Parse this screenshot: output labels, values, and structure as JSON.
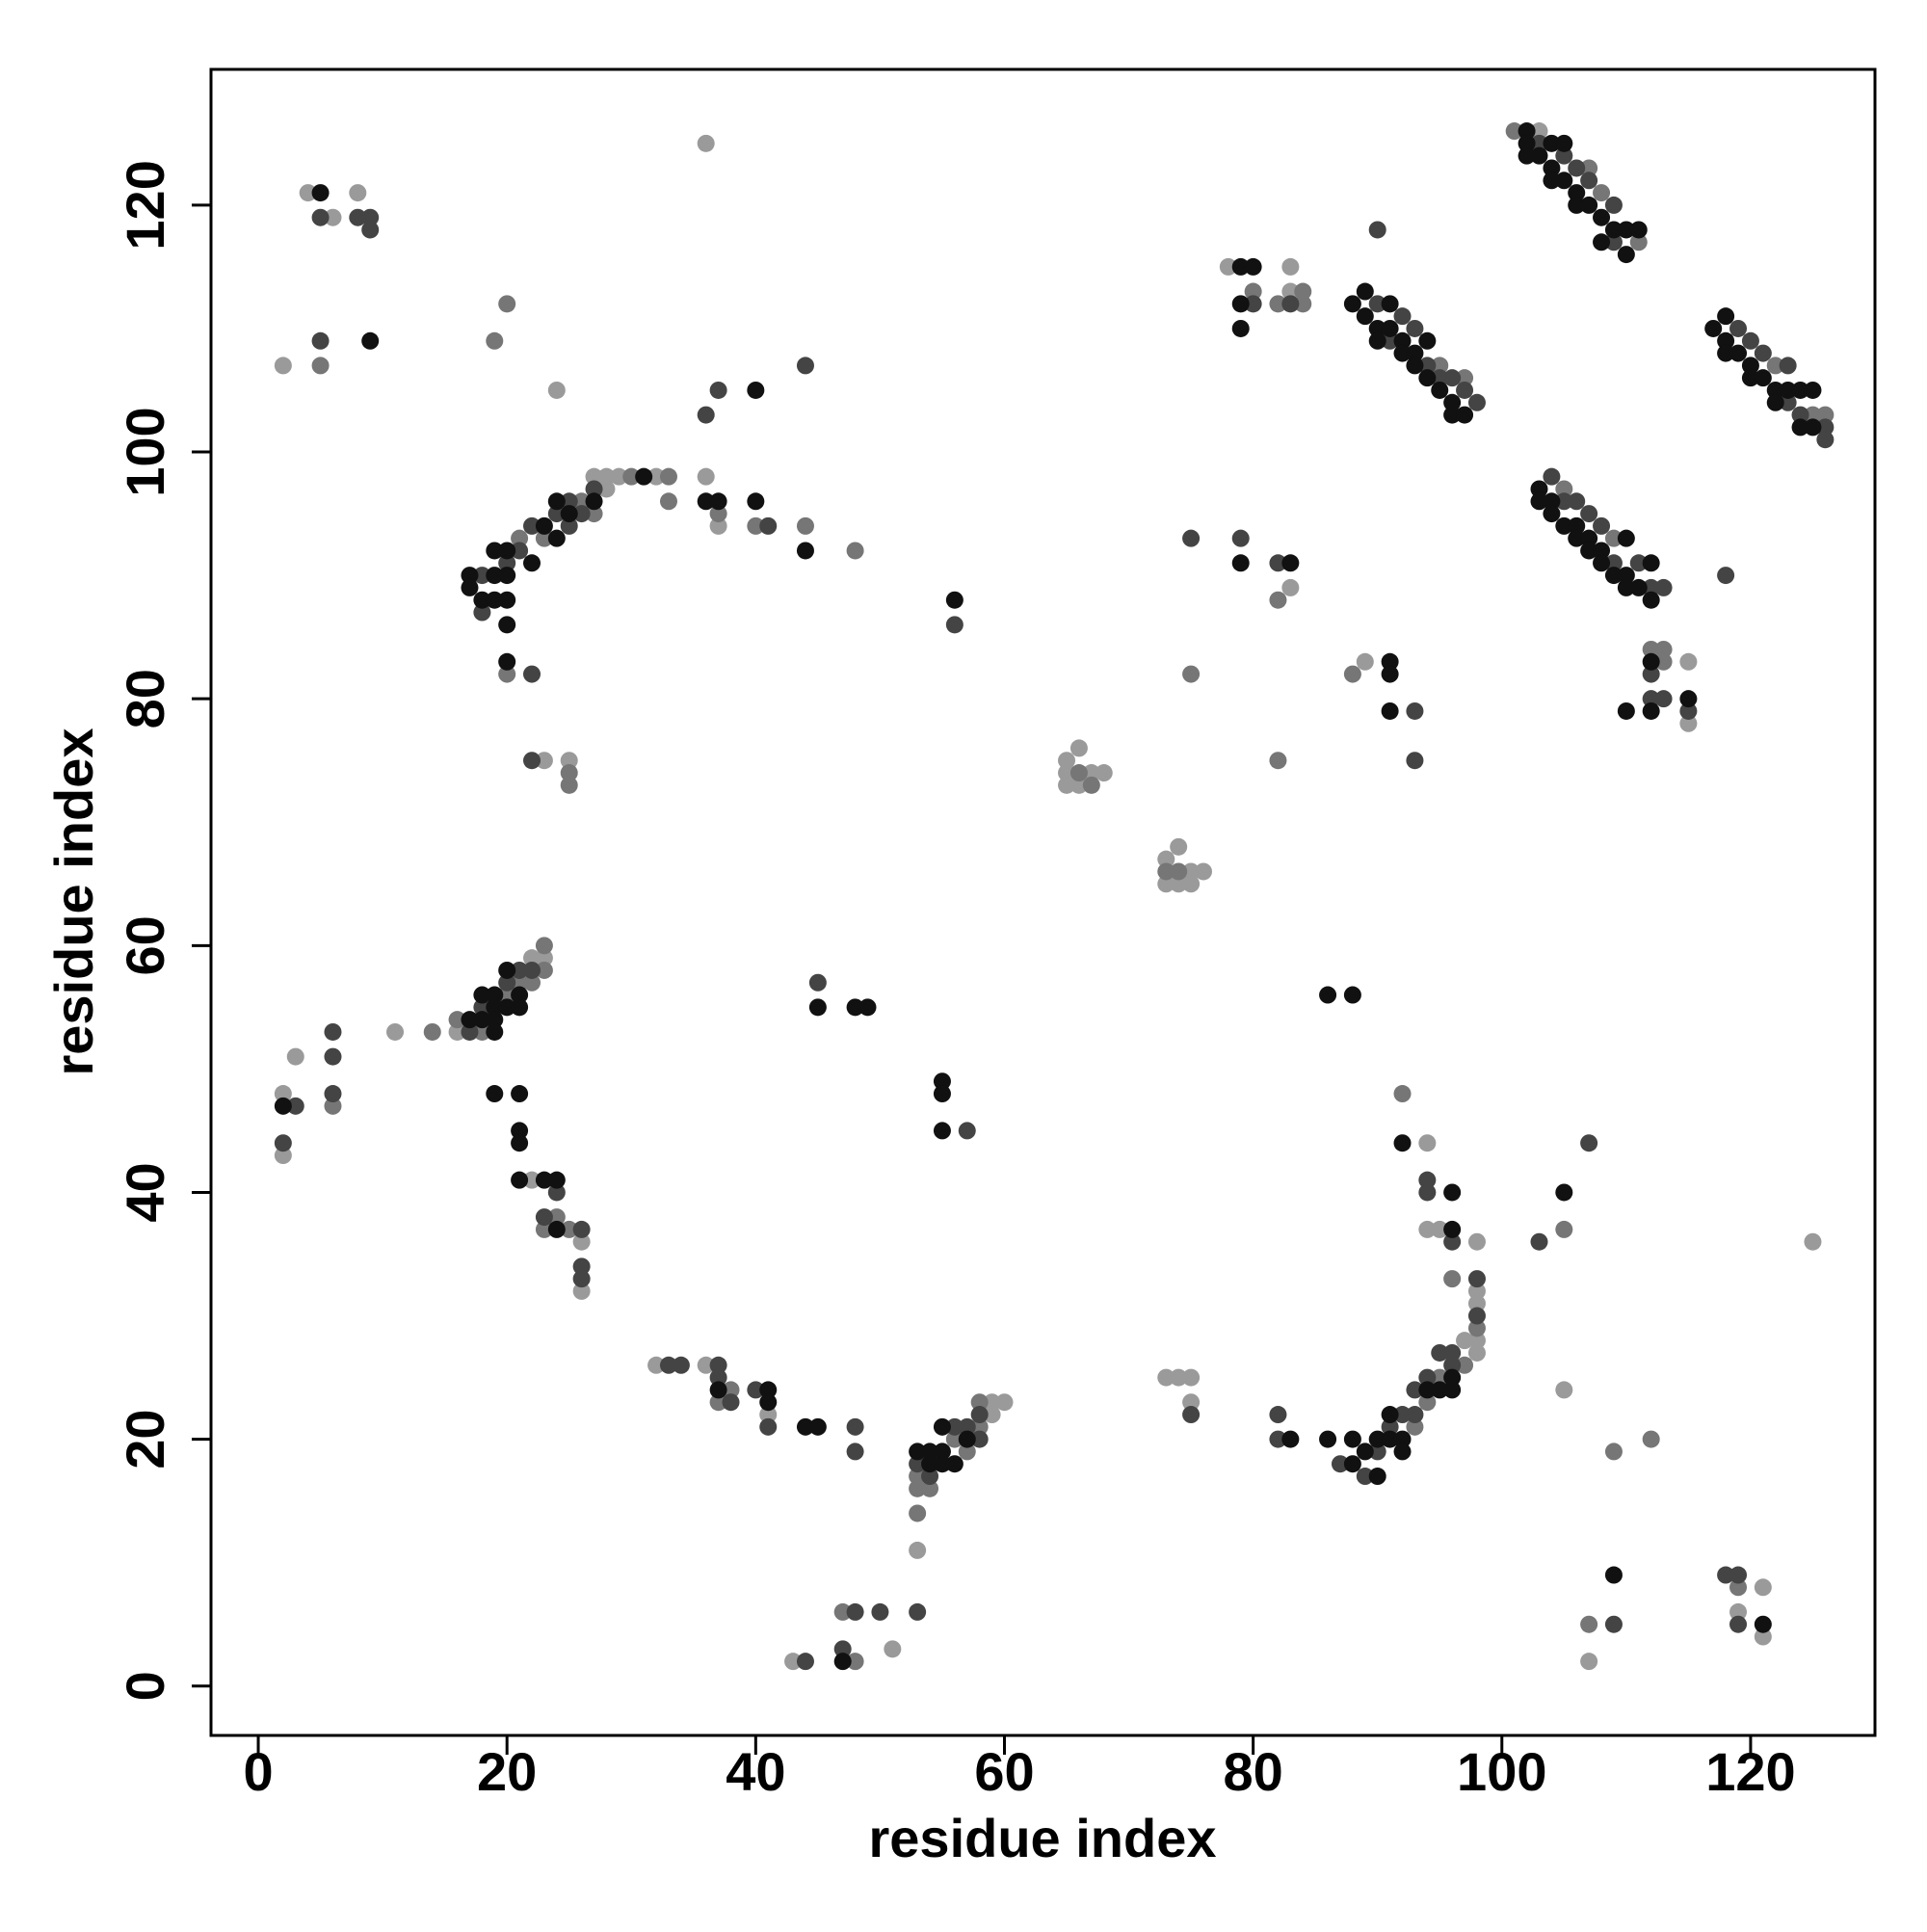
{
  "chart_data": {
    "type": "scatter",
    "xlabel": "residue index",
    "ylabel": "residue index",
    "xlim": [
      -3.8,
      130
    ],
    "ylim": [
      -4,
      131
    ],
    "xticks": [
      0,
      20,
      40,
      60,
      80,
      100,
      120
    ],
    "yticks": [
      0,
      20,
      40,
      60,
      80,
      100,
      120
    ],
    "grid": false,
    "series": [
      {
        "color": "#9a9a9a",
        "x": [
          4,
          6,
          8,
          2,
          24,
          36,
          27,
          28,
          28,
          29,
          32,
          36,
          37,
          23,
          25,
          65,
          65,
          65,
          66,
          66,
          67,
          68,
          73,
          73,
          74,
          74,
          75,
          75,
          76,
          78,
          83,
          83,
          83,
          103,
          115,
          115,
          89,
          2,
          2,
          3,
          11,
          16,
          22,
          23,
          22,
          26,
          26,
          32,
          36,
          41,
          53,
          59,
          59,
          60,
          43,
          51,
          73,
          74,
          75,
          75,
          97,
          98,
          98,
          98,
          98,
          98,
          94,
          94,
          95,
          105,
          125,
          107,
          119,
          121,
          121
        ],
        "values": [
          121,
          119,
          121,
          107,
          105,
          125,
          98,
          98,
          97,
          98,
          98,
          98,
          94,
          75,
          75,
          75,
          74,
          73,
          76,
          73,
          74,
          74,
          67,
          65,
          68,
          65,
          66,
          65,
          66,
          115,
          115,
          113,
          89,
          126,
          83,
          78,
          83,
          48,
          43,
          51,
          53,
          53,
          59,
          59,
          41,
          36,
          32,
          26,
          26,
          22,
          11,
          23,
          22,
          23,
          2,
          3,
          25,
          25,
          25,
          23,
          28,
          32,
          31,
          28,
          27,
          36,
          44,
          37,
          37,
          24,
          36,
          2,
          6,
          8,
          4
        ]
      },
      {
        "color": "#767676",
        "x": [
          5,
          19,
          20,
          21,
          23,
          26,
          27,
          30,
          33,
          33,
          37,
          40,
          44,
          48,
          20,
          25,
          25,
          66,
          67,
          73,
          74,
          75,
          80,
          82,
          84,
          84,
          82,
          82,
          95,
          97,
          101,
          107,
          108,
          111,
          105,
          109,
          122,
          125,
          126,
          112,
          113,
          113,
          88,
          6,
          14,
          16,
          18,
          20,
          21,
          22,
          23,
          23,
          24,
          23,
          25,
          37,
          38,
          53,
          53,
          53,
          54,
          56,
          57,
          58,
          58,
          47,
          48,
          93,
          94,
          95,
          97,
          98,
          92,
          96,
          105,
          109,
          112,
          107,
          119
        ],
        "values": [
          107,
          109,
          112,
          93,
          93,
          96,
          95,
          98,
          98,
          96,
          95,
          94,
          94,
          92,
          82,
          74,
          73,
          74,
          73,
          66,
          66,
          82,
          113,
          112,
          113,
          112,
          88,
          75,
          107,
          106,
          126,
          123,
          121,
          117,
          97,
          93,
          107,
          103,
          103,
          84,
          84,
          83,
          82,
          47,
          53,
          54,
          53,
          56,
          57,
          57,
          60,
          58,
          38,
          37,
          37,
          23,
          24,
          17,
          16,
          14,
          16,
          20,
          19,
          21,
          23,
          6,
          2,
          21,
          23,
          25,
          26,
          29,
          48,
          33,
          37,
          19,
          20,
          5,
          8
        ]
      },
      {
        "color": "#444444",
        "x": [
          5,
          8,
          9,
          9,
          5,
          18,
          18,
          20,
          21,
          22,
          24,
          25,
          25,
          26,
          27,
          41,
          22,
          22,
          36,
          37,
          44,
          56,
          75,
          80,
          83,
          79,
          82,
          90,
          90,
          91,
          92,
          93,
          94,
          95,
          96,
          97,
          98,
          103,
          105,
          106,
          107,
          109,
          109,
          104,
          105,
          106,
          107,
          108,
          109,
          111,
          112,
          113,
          118,
          119,
          120,
          121,
          123,
          123,
          124,
          126,
          126,
          112,
          112,
          113,
          115,
          93,
          93,
          2,
          3,
          6,
          6,
          6,
          17,
          18,
          20,
          21,
          22,
          23,
          24,
          26,
          26,
          26,
          45,
          57,
          33,
          34,
          37,
          37,
          38,
          40,
          41,
          48,
          48,
          53,
          54,
          56,
          57,
          58,
          58,
          44,
          48,
          47,
          50,
          53,
          75,
          82,
          82,
          87,
          89,
          90,
          91,
          92,
          93,
          93,
          94,
          95,
          96,
          96,
          98,
          98,
          94,
          94,
          96,
          103,
          107,
          109,
          118,
          119,
          119
        ],
        "values": [
          119,
          119,
          119,
          118,
          109,
          90,
          87,
          91,
          92,
          94,
          95,
          96,
          94,
          95,
          97,
          94,
          82,
          75,
          103,
          105,
          107,
          86,
          93,
          112,
          112,
          93,
          91,
          118,
          112,
          109,
          111,
          110,
          107,
          106,
          106,
          105,
          104,
          125,
          124,
          123,
          122,
          120,
          117,
          98,
          96,
          96,
          95,
          94,
          91,
          91,
          89,
          89,
          90,
          110,
          109,
          108,
          107,
          104,
          103,
          102,
          101,
          82,
          80,
          80,
          79,
          79,
          75,
          44,
          47,
          53,
          51,
          48,
          53,
          55,
          57,
          58,
          58,
          38,
          40,
          37,
          34,
          33,
          57,
          45,
          26,
          26,
          26,
          25,
          23,
          24,
          21,
          21,
          19,
          18,
          17,
          21,
          21,
          22,
          20,
          2,
          6,
          3,
          6,
          6,
          22,
          22,
          20,
          18,
          17,
          19,
          21,
          22,
          24,
          22,
          25,
          27,
          27,
          26,
          33,
          30,
          41,
          40,
          36,
          36,
          44,
          5,
          9,
          9,
          5
        ]
      },
      {
        "color": "#111111",
        "x": [
          5,
          9,
          17,
          17,
          18,
          19,
          19,
          19,
          20,
          20,
          20,
          20,
          22,
          23,
          24,
          24,
          25,
          27,
          31,
          36,
          37,
          40,
          44,
          20,
          40,
          56,
          79,
          80,
          79,
          79,
          79,
          83,
          88,
          89,
          89,
          90,
          90,
          91,
          91,
          92,
          92,
          93,
          93,
          94,
          94,
          95,
          96,
          96,
          97,
          102,
          102,
          102,
          103,
          104,
          104,
          104,
          105,
          105,
          106,
          106,
          107,
          108,
          108,
          109,
          110,
          110,
          111,
          103,
          103,
          104,
          104,
          105,
          106,
          106,
          107,
          107,
          108,
          108,
          109,
          110,
          110,
          110,
          111,
          112,
          112,
          117,
          118,
          118,
          118,
          119,
          120,
          120,
          121,
          122,
          122,
          123,
          124,
          124,
          125,
          125,
          112,
          112,
          110,
          115,
          91,
          91,
          91,
          2,
          17,
          18,
          18,
          19,
          19,
          19,
          19,
          20,
          20,
          21,
          21,
          19,
          21,
          21,
          21,
          21,
          23,
          24,
          24,
          45,
          48,
          49,
          55,
          55,
          55,
          86,
          88,
          37,
          41,
          41,
          44,
          45,
          53,
          54,
          54,
          55,
          55,
          55,
          56,
          57,
          47,
          83,
          86,
          88,
          88,
          89,
          90,
          90,
          91,
          91,
          92,
          92,
          94,
          95,
          96,
          96,
          92,
          96,
          96,
          105,
          109,
          121
        ],
        "values": [
          121,
          109,
          90,
          89,
          88,
          92,
          90,
          88,
          92,
          90,
          88,
          86,
          91,
          94,
          96,
          93,
          95,
          96,
          98,
          96,
          96,
          96,
          92,
          83,
          105,
          88,
          115,
          115,
          112,
          110,
          91,
          91,
          112,
          113,
          111,
          110,
          109,
          112,
          110,
          109,
          108,
          108,
          107,
          109,
          106,
          105,
          104,
          103,
          103,
          126,
          125,
          124,
          124,
          125,
          123,
          122,
          125,
          122,
          121,
          120,
          120,
          119,
          117,
          118,
          118,
          116,
          118,
          97,
          96,
          96,
          95,
          94,
          94,
          93,
          93,
          92,
          92,
          91,
          90,
          93,
          90,
          89,
          89,
          91,
          88,
          110,
          111,
          109,
          108,
          108,
          107,
          106,
          106,
          105,
          104,
          105,
          105,
          102,
          105,
          102,
          83,
          79,
          79,
          80,
          83,
          82,
          79,
          47,
          54,
          56,
          54,
          56,
          55,
          54,
          53,
          58,
          55,
          56,
          55,
          48,
          48,
          45,
          44,
          41,
          41,
          41,
          37,
          55,
          55,
          55,
          49,
          48,
          45,
          56,
          56,
          24,
          24,
          23,
          21,
          21,
          19,
          19,
          18,
          21,
          19,
          18,
          18,
          20,
          2,
          20,
          20,
          20,
          18,
          19,
          20,
          17,
          22,
          20,
          20,
          19,
          24,
          24,
          25,
          24,
          44,
          40,
          37,
          40,
          9,
          5
        ]
      }
    ]
  }
}
